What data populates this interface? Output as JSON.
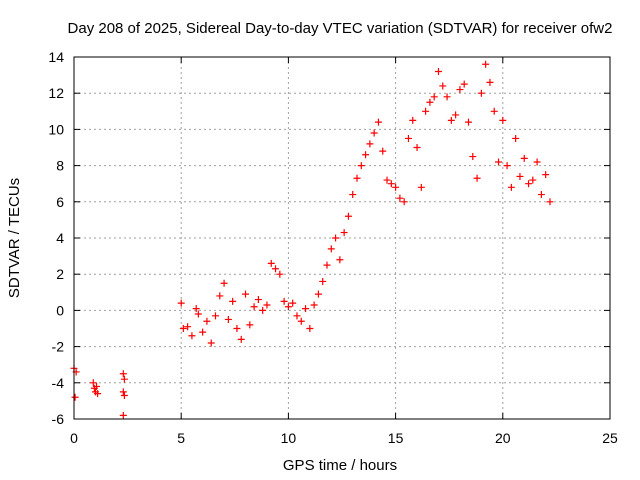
{
  "chart_data": {
    "type": "scatter",
    "title": "Day 208 of 2025, Sidereal Day-to-day VTEC variation (SDTVAR) for receiver ofw2",
    "xlabel": "GPS time / hours",
    "ylabel": "SDTVAR / TECUs",
    "xlim": [
      0,
      25
    ],
    "ylim": [
      -6,
      14
    ],
    "x_ticks": [
      0,
      5,
      10,
      15,
      20,
      25
    ],
    "y_ticks": [
      -6,
      -4,
      -2,
      0,
      2,
      4,
      6,
      8,
      10,
      12,
      14
    ],
    "x_tick_labels": [
      "0",
      "5",
      "10",
      "15",
      "20",
      "25"
    ],
    "y_tick_labels": [
      "-6",
      "-4",
      "-2",
      "0",
      "2",
      "4",
      "6",
      "8",
      "10",
      "12",
      "14"
    ],
    "grid": true,
    "marker": "+",
    "marker_color": "#ff0000",
    "series": [
      {
        "name": "SDTVAR",
        "points": [
          [
            0.0,
            -3.2
          ],
          [
            0.05,
            -4.8
          ],
          [
            0.1,
            -3.4
          ],
          [
            0.9,
            -4.0
          ],
          [
            0.95,
            -4.3
          ],
          [
            1.0,
            -4.5
          ],
          [
            1.05,
            -4.2
          ],
          [
            1.1,
            -4.6
          ],
          [
            2.3,
            -3.5
          ],
          [
            2.35,
            -3.8
          ],
          [
            2.3,
            -4.5
          ],
          [
            2.35,
            -4.7
          ],
          [
            2.3,
            -5.8
          ],
          [
            5.0,
            0.4
          ],
          [
            5.1,
            -1.0
          ],
          [
            5.3,
            -0.9
          ],
          [
            5.5,
            -1.4
          ],
          [
            5.7,
            0.1
          ],
          [
            5.8,
            -0.2
          ],
          [
            6.0,
            -1.2
          ],
          [
            6.2,
            -0.6
          ],
          [
            6.4,
            -1.8
          ],
          [
            6.6,
            -0.3
          ],
          [
            6.8,
            0.8
          ],
          [
            7.0,
            1.5
          ],
          [
            7.2,
            -0.5
          ],
          [
            7.4,
            0.5
          ],
          [
            7.6,
            -1.0
          ],
          [
            7.8,
            -1.6
          ],
          [
            8.0,
            0.9
          ],
          [
            8.2,
            -0.8
          ],
          [
            8.4,
            0.2
          ],
          [
            8.6,
            0.6
          ],
          [
            8.8,
            0.0
          ],
          [
            9.0,
            0.3
          ],
          [
            9.2,
            2.6
          ],
          [
            9.4,
            2.3
          ],
          [
            9.6,
            2.0
          ],
          [
            9.8,
            0.5
          ],
          [
            10.0,
            0.2
          ],
          [
            10.2,
            0.4
          ],
          [
            10.4,
            -0.3
          ],
          [
            10.6,
            -0.6
          ],
          [
            10.8,
            0.1
          ],
          [
            11.0,
            -1.0
          ],
          [
            11.2,
            0.3
          ],
          [
            11.4,
            0.9
          ],
          [
            11.6,
            1.6
          ],
          [
            11.8,
            2.5
          ],
          [
            12.0,
            3.4
          ],
          [
            12.2,
            4.0
          ],
          [
            12.4,
            2.8
          ],
          [
            12.6,
            4.3
          ],
          [
            12.8,
            5.2
          ],
          [
            13.0,
            6.4
          ],
          [
            13.2,
            7.3
          ],
          [
            13.4,
            8.0
          ],
          [
            13.6,
            8.6
          ],
          [
            13.8,
            9.2
          ],
          [
            14.0,
            9.8
          ],
          [
            14.2,
            10.4
          ],
          [
            14.4,
            8.8
          ],
          [
            14.6,
            7.2
          ],
          [
            14.8,
            7.0
          ],
          [
            15.0,
            6.8
          ],
          [
            15.2,
            6.2
          ],
          [
            15.4,
            6.0
          ],
          [
            15.6,
            9.5
          ],
          [
            15.8,
            10.5
          ],
          [
            16.0,
            9.0
          ],
          [
            16.2,
            6.8
          ],
          [
            16.4,
            11.0
          ],
          [
            16.6,
            11.5
          ],
          [
            16.8,
            11.8
          ],
          [
            17.0,
            13.2
          ],
          [
            17.2,
            12.4
          ],
          [
            17.4,
            11.8
          ],
          [
            17.6,
            10.5
          ],
          [
            17.8,
            10.8
          ],
          [
            18.0,
            12.2
          ],
          [
            18.2,
            12.5
          ],
          [
            18.4,
            10.4
          ],
          [
            18.6,
            8.5
          ],
          [
            18.8,
            7.3
          ],
          [
            19.0,
            12.0
          ],
          [
            19.2,
            13.6
          ],
          [
            19.4,
            12.6
          ],
          [
            19.6,
            11.0
          ],
          [
            19.8,
            8.2
          ],
          [
            20.0,
            10.5
          ],
          [
            20.2,
            8.0
          ],
          [
            20.4,
            6.8
          ],
          [
            20.6,
            9.5
          ],
          [
            20.8,
            7.4
          ],
          [
            21.0,
            8.4
          ],
          [
            21.2,
            7.0
          ],
          [
            21.4,
            7.2
          ],
          [
            21.6,
            8.2
          ],
          [
            21.8,
            6.4
          ],
          [
            22.0,
            7.5
          ],
          [
            22.2,
            6.0
          ]
        ]
      }
    ]
  }
}
